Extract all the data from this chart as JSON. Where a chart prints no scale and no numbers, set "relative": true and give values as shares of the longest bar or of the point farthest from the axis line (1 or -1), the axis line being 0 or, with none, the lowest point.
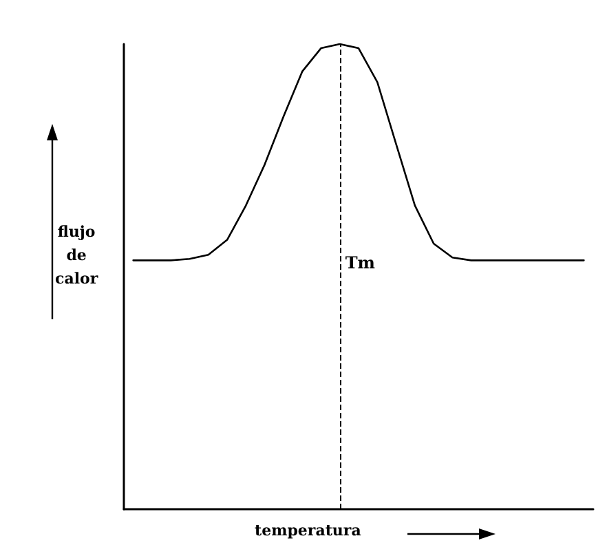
{
  "chart_data": {
    "type": "line",
    "relative": true,
    "xlabel": "temperatura",
    "ylabel": "flujo de calor",
    "categories": [
      null,
      null,
      null,
      null,
      null,
      null,
      null,
      null,
      null,
      null,
      null,
      null,
      null,
      null,
      null,
      null,
      null,
      null,
      null,
      null,
      null,
      null,
      null,
      null,
      null
    ],
    "series": [
      {
        "color": "#000000",
        "values": [
          0.535,
          0.535,
          0.535,
          0.538,
          0.547,
          0.579,
          0.653,
          0.741,
          0.844,
          0.941,
          0.991,
          1,
          0.991,
          0.918,
          0.785,
          0.653,
          0.571,
          0.541,
          0.535,
          0.535,
          0.535,
          0.535,
          0.535,
          0.535,
          0.535
        ]
      }
    ],
    "annotations": [
      "Tm"
    ],
    "grid": false,
    "marker": "none",
    "line_style": "solid"
  }
}
